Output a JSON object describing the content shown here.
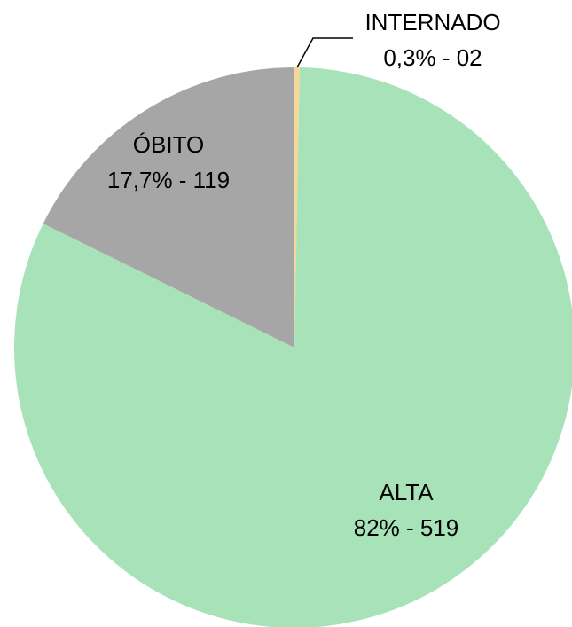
{
  "chart_data": {
    "type": "pie",
    "categories": [
      "INTERNADO",
      "ALTA",
      "ÓBITO"
    ],
    "values": [
      0.3,
      82,
      17.7
    ],
    "value_labels": [
      "0,3% - 02",
      "82% - 519",
      "17,7% - 119"
    ],
    "colors": [
      "#f5d79a",
      "#a8e2b8",
      "#a6a6a6"
    ]
  }
}
